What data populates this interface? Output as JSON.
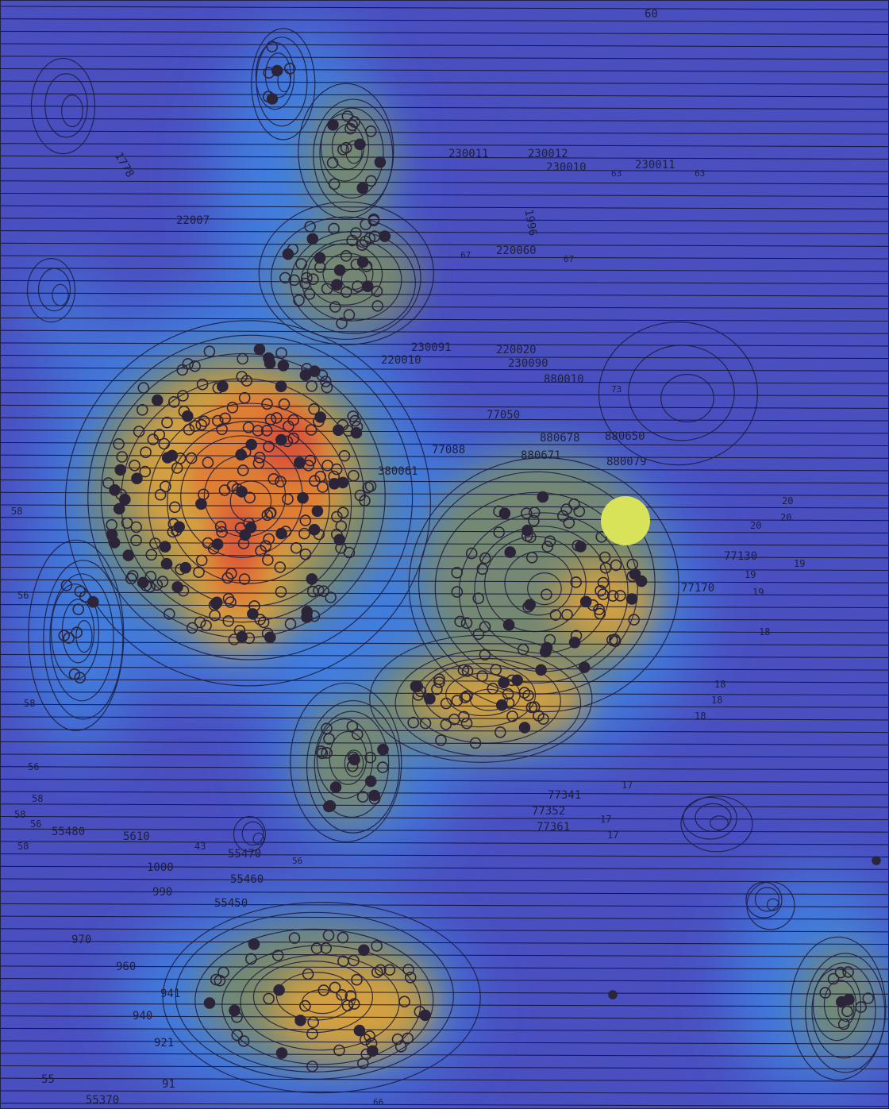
{
  "map": {
    "colors": {
      "background_blue": "#4a4fc0",
      "light_blue": "#3f86e3",
      "olive": "#7a8a68",
      "gold": "#d9a23c",
      "orange": "#e07a35",
      "red": "#d8453a",
      "contour": "#1b1b3c",
      "marker": "#2c2438",
      "highlight": "#d9e35a"
    },
    "labels": [
      "60",
      "230011",
      "230012",
      "230010",
      "63",
      "230011",
      "63",
      "1778",
      "22007",
      "1996",
      "67",
      "220060",
      "67",
      "230091",
      "220010",
      "220020",
      "230090",
      "880010",
      "73",
      "77050",
      "880650",
      "880678",
      "880671",
      "77088",
      "380061",
      "880079",
      "20",
      "20",
      "20",
      "19",
      "19",
      "19",
      "18",
      "18",
      "18",
      "18",
      "77130",
      "77170",
      "58",
      "56",
      "58",
      "56",
      "58",
      "58",
      "56",
      "58",
      "55480",
      "5610",
      "43",
      "55470",
      "56",
      "1000",
      "990",
      "55460",
      "55450",
      "970",
      "960",
      "941",
      "940",
      "921",
      "91",
      "55",
      "55370",
      "66",
      "17",
      "17",
      "17",
      "77352",
      "77361",
      "77341"
    ]
  }
}
